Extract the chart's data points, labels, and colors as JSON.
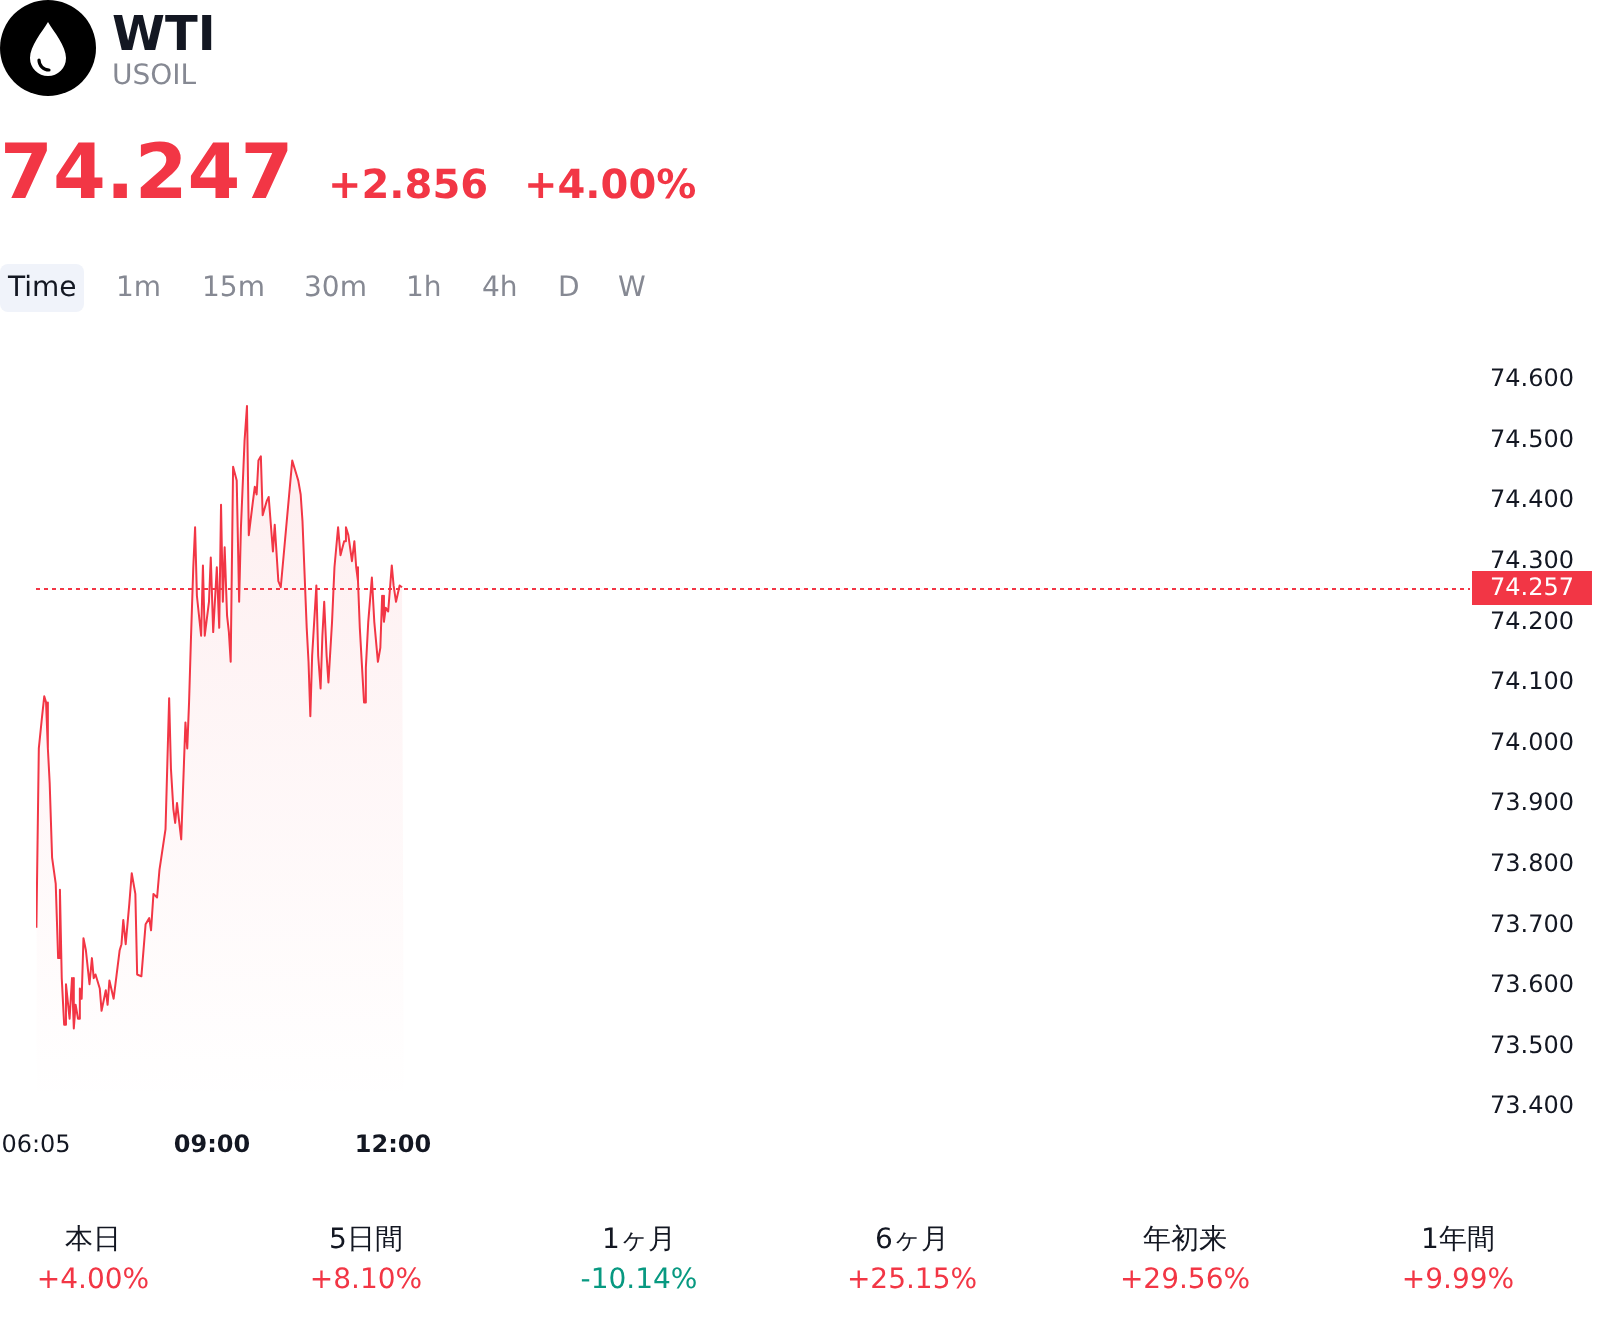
{
  "chart_data": {
    "type": "area",
    "title": "WTI",
    "subtitle": "USOIL",
    "color": "#f23645",
    "marker": "none",
    "x": [
      6.09,
      6.13,
      6.18,
      6.22,
      6.25,
      6.28,
      6.31,
      6.35,
      6.41,
      6.45,
      6.48,
      6.51,
      6.55,
      6.58,
      6.64,
      6.68,
      6.71,
      6.74,
      6.78,
      6.81,
      6.84,
      6.87,
      6.91,
      6.97,
      7.01,
      7.04,
      7.07,
      7.14,
      7.17,
      7.24,
      7.27,
      7.3,
      7.37,
      7.4,
      7.47,
      7.5,
      7.53,
      7.57,
      7.63,
      7.67,
      7.73,
      7.76,
      7.83,
      7.9,
      7.96,
      7.99,
      8.03,
      8.09,
      8.13,
      8.16,
      8.23,
      8.29,
      8.32,
      8.36,
      8.39,
      8.42,
      8.49,
      8.56,
      8.59,
      8.62,
      8.65,
      8.69,
      8.72,
      8.75,
      8.82,
      8.85,
      8.88,
      8.95,
      8.98,
      9.02,
      9.08,
      9.12,
      9.15,
      9.18,
      9.21,
      9.25,
      9.28,
      9.31,
      9.35,
      9.41,
      9.45,
      9.48,
      9.54,
      9.58,
      9.61,
      9.68,
      9.71,
      9.74,
      9.77,
      9.81,
      9.84,
      9.91,
      9.94,
      10.01,
      10.04,
      10.1,
      10.14,
      10.2,
      10.27,
      10.3,
      10.33,
      10.4,
      10.43,
      10.47,
      10.5,
      10.57,
      10.6,
      10.63,
      10.66,
      10.73,
      10.76,
      10.8,
      10.83,
      10.86,
      10.9,
      10.93,
      10.99,
      11.03,
      11.06,
      11.09,
      11.13,
      11.19,
      11.22,
      11.26,
      11.32,
      11.36,
      11.39,
      11.42,
      11.45,
      11.52,
      11.55,
      11.59,
      11.65,
      11.69,
      11.75,
      11.79,
      11.82,
      11.85,
      11.88,
      11.92,
      11.98,
      12.01,
      12.05,
      12.11,
      12.15,
      12.18
    ],
    "values": [
      73.696,
      73.992,
      74.041,
      74.078,
      74.068,
      73.992,
      73.935,
      73.812,
      73.769,
      73.646,
      73.759,
      73.613,
      73.536,
      73.603,
      73.546,
      73.613,
      73.53,
      73.569,
      73.546,
      73.596,
      73.579,
      73.679,
      73.659,
      73.603,
      73.646,
      73.613,
      73.619,
      73.596,
      73.559,
      73.593,
      73.569,
      73.609,
      73.579,
      73.603,
      73.659,
      73.669,
      73.709,
      73.669,
      73.736,
      73.786,
      73.752,
      73.619,
      73.616,
      73.702,
      73.712,
      73.692,
      73.752,
      73.746,
      73.792,
      73.812,
      73.859,
      74.075,
      73.958,
      73.892,
      73.869,
      73.902,
      73.842,
      74.035,
      73.992,
      74.068,
      74.168,
      74.291,
      74.357,
      74.244,
      74.178,
      74.294,
      74.178,
      74.234,
      74.307,
      74.184,
      74.291,
      74.191,
      74.394,
      74.234,
      74.324,
      74.211,
      74.184,
      74.135,
      74.457,
      74.434,
      74.234,
      74.357,
      74.5,
      74.557,
      74.344,
      74.401,
      74.424,
      74.411,
      74.467,
      74.474,
      74.377,
      74.401,
      74.407,
      74.317,
      74.361,
      74.268,
      74.258,
      74.324,
      74.401,
      74.434,
      74.467,
      74.444,
      74.434,
      74.411,
      74.367,
      74.191,
      74.135,
      74.045,
      74.145,
      74.261,
      74.145,
      74.091,
      74.178,
      74.234,
      74.145,
      74.101,
      74.201,
      74.291,
      74.324,
      74.357,
      74.311,
      74.334,
      74.357,
      74.344,
      74.301,
      74.334,
      74.291,
      74.268,
      74.191,
      74.068,
      74.125,
      74.201,
      74.274,
      74.201,
      74.135,
      74.158,
      74.244,
      74.201,
      74.224,
      74.218,
      74.294,
      74.261,
      74.234,
      74.261,
      74.258,
      74.258
    ],
    "xlim": [
      6.0833,
      29.85
    ],
    "xticks": [
      {
        "value": 6.0833,
        "label": "06:05"
      },
      {
        "value": 9,
        "label": "09:00"
      },
      {
        "value": 12,
        "label": "12:00"
      }
    ],
    "ylim": [
      73.4,
      74.6
    ],
    "yticks": [
      {
        "value": 73.4,
        "label": "73.400"
      },
      {
        "value": 73.5,
        "label": "73.500"
      },
      {
        "value": 73.6,
        "label": "73.600"
      },
      {
        "value": 73.7,
        "label": "73.700"
      },
      {
        "value": 73.8,
        "label": "73.800"
      },
      {
        "value": 73.9,
        "label": "73.900"
      },
      {
        "value": 74.0,
        "label": "74.000"
      },
      {
        "value": 74.1,
        "label": "74.100"
      },
      {
        "value": 74.2,
        "label": "74.200"
      },
      {
        "value": 74.3,
        "label": "74.300"
      },
      {
        "value": 74.4,
        "label": "74.400"
      },
      {
        "value": 74.5,
        "label": "74.500"
      },
      {
        "value": 74.6,
        "label": "74.600"
      }
    ],
    "ref_lines": [
      {
        "axis": "y",
        "value": 74.257,
        "label": "74.257",
        "color": "#f23645",
        "line_style": "dotted"
      }
    ],
    "annotations": [
      "74.247",
      "+2.856",
      "+4.00%",
      "Time",
      "1m",
      "15m",
      "30m",
      "1h",
      "4h",
      "D",
      "W",
      "本日",
      "+4.00%",
      "5日間",
      "+8.10%",
      "1ヶ月",
      "-10.14%",
      "6ヶ月",
      "+25.15%",
      "年初来",
      "+29.56%",
      "1年間",
      "+9.99%"
    ]
  }
}
